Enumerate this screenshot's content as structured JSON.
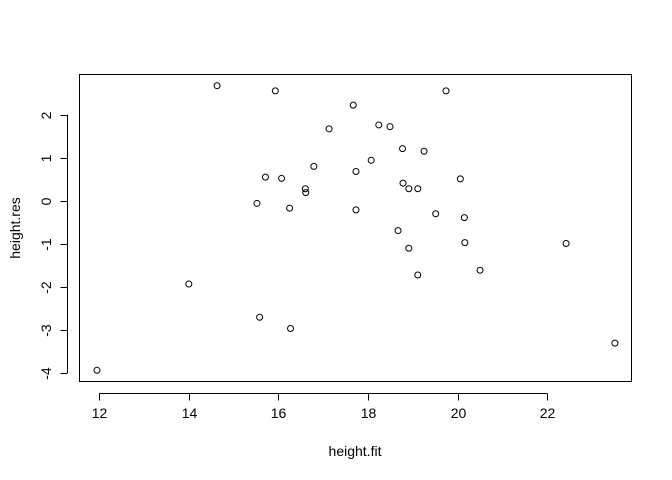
{
  "chart_data": {
    "type": "scatter",
    "title": "",
    "xlabel": "height.fit",
    "ylabel": "height.res",
    "xlim": [
      11.56,
      23.88
    ],
    "ylim": [
      -4.19,
      2.93
    ],
    "grid": false,
    "point_style": "open-circle",
    "x_ticks": [
      12,
      14,
      16,
      18,
      20,
      22
    ],
    "y_ticks": [
      -4,
      -3,
      -2,
      -1,
      0,
      1,
      2
    ],
    "x_tick_labels": [
      "12",
      "14",
      "16",
      "18",
      "20",
      "22"
    ],
    "y_tick_labels": [
      "-4",
      "-3",
      "-2",
      "-1",
      "0",
      "1",
      "2"
    ],
    "points": [
      {
        "x": 11.95,
        "y": -3.93
      },
      {
        "x": 14.0,
        "y": -1.93
      },
      {
        "x": 14.63,
        "y": 2.67
      },
      {
        "x": 15.52,
        "y": -0.06
      },
      {
        "x": 15.58,
        "y": -2.7
      },
      {
        "x": 15.71,
        "y": 0.55
      },
      {
        "x": 15.93,
        "y": 2.55
      },
      {
        "x": 16.07,
        "y": 0.52
      },
      {
        "x": 16.25,
        "y": -0.17
      },
      {
        "x": 16.27,
        "y": -2.96
      },
      {
        "x": 16.6,
        "y": 0.28
      },
      {
        "x": 16.61,
        "y": 0.19
      },
      {
        "x": 16.79,
        "y": 0.8
      },
      {
        "x": 17.13,
        "y": 1.67
      },
      {
        "x": 17.67,
        "y": 2.22
      },
      {
        "x": 17.73,
        "y": 0.68
      },
      {
        "x": 17.73,
        "y": -0.21
      },
      {
        "x": 18.07,
        "y": 0.94
      },
      {
        "x": 18.24,
        "y": 1.76
      },
      {
        "x": 18.49,
        "y": 1.72
      },
      {
        "x": 18.67,
        "y": -0.69
      },
      {
        "x": 18.77,
        "y": 1.21
      },
      {
        "x": 18.78,
        "y": 0.41
      },
      {
        "x": 18.91,
        "y": -1.1
      },
      {
        "x": 18.91,
        "y": 0.28
      },
      {
        "x": 19.11,
        "y": 0.28
      },
      {
        "x": 19.11,
        "y": -1.72
      },
      {
        "x": 19.25,
        "y": 1.15
      },
      {
        "x": 19.51,
        "y": -0.3
      },
      {
        "x": 19.74,
        "y": 2.55
      },
      {
        "x": 20.06,
        "y": 0.51
      },
      {
        "x": 20.15,
        "y": -0.39
      },
      {
        "x": 20.16,
        "y": -0.97
      },
      {
        "x": 20.5,
        "y": -1.61
      },
      {
        "x": 22.42,
        "y": -0.99
      },
      {
        "x": 23.51,
        "y": -3.3
      }
    ]
  }
}
